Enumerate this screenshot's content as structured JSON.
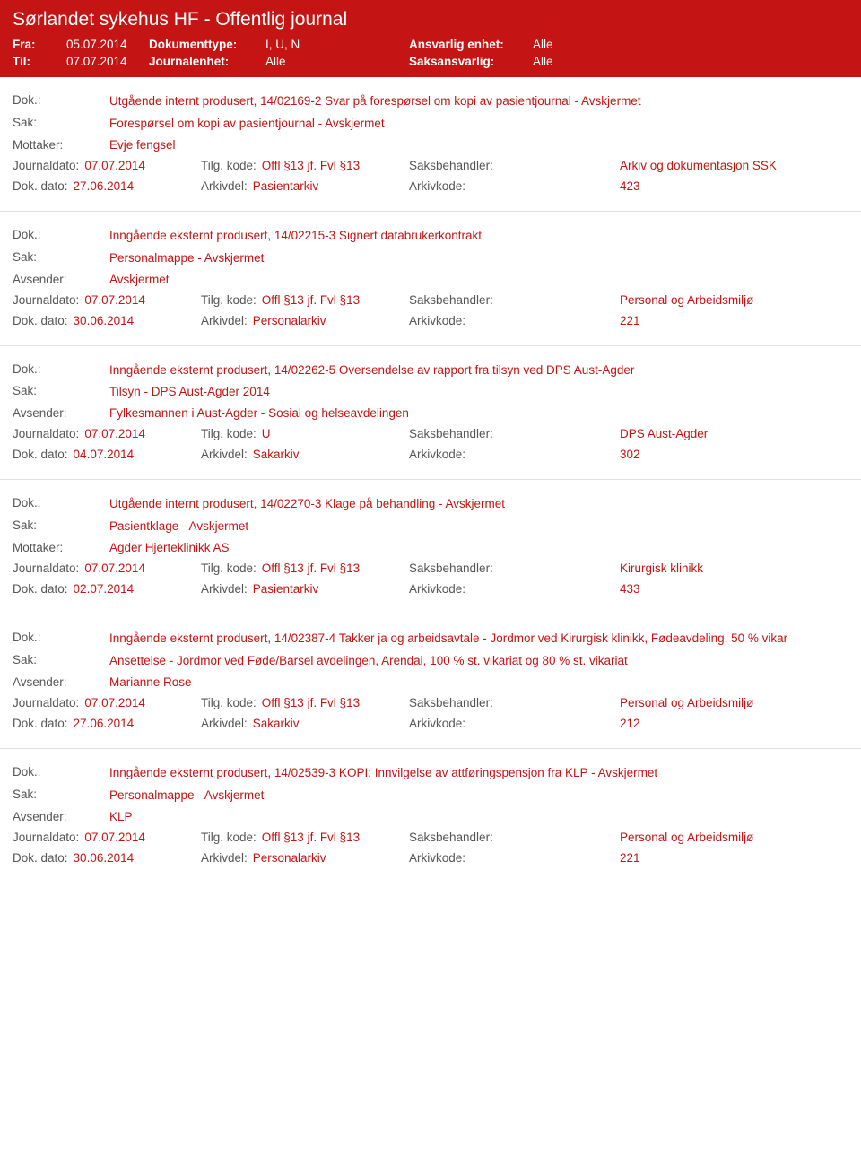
{
  "header": {
    "title": "Sørlandet sykehus HF - Offentlig journal",
    "row1": {
      "fra_label": "Fra:",
      "fra": "05.07.2014",
      "dokumenttype_label": "Dokumenttype:",
      "dokumenttype": "I, U, N",
      "ansvarlig_label": "Ansvarlig enhet:",
      "ansvarlig": "Alle"
    },
    "row2": {
      "til_label": "Til:",
      "til": "07.07.2014",
      "journalenhet_label": "Journalenhet:",
      "journalenhet": "Alle",
      "saksansvarlig_label": "Saksansvarlig:",
      "saksansvarlig": "Alle"
    }
  },
  "labels": {
    "dok": "Dok.:",
    "sak": "Sak:",
    "mottaker": "Mottaker:",
    "avsender": "Avsender:",
    "journaldato": "Journaldato:",
    "dokdato": "Dok. dato:",
    "tilgkode": "Tilg. kode:",
    "arkivdel": "Arkivdel:",
    "saksbehandler": "Saksbehandler:",
    "arkivkode": "Arkivkode:"
  },
  "entries": [
    {
      "dok": "Utgående internt produsert, 14/02169-2 Svar på forespørsel om kopi av pasientjournal - Avskjermet",
      "sak": "Forespørsel om kopi av pasientjournal - Avskjermet",
      "party_label": "Mottaker:",
      "party": "Evje fengsel",
      "journaldato": "07.07.2014",
      "tilgkode": "Offl §13 jf. Fvl §13",
      "saksbehandler": "Arkiv og dokumentasjon SSK",
      "dokdato": "27.06.2014",
      "arkivdel": "Pasientarkiv",
      "arkivkode": "423"
    },
    {
      "dok": "Inngående eksternt produsert, 14/02215-3 Signert databrukerkontrakt",
      "sak": "Personalmappe - Avskjermet",
      "party_label": "Avsender:",
      "party": "Avskjermet",
      "journaldato": "07.07.2014",
      "tilgkode": "Offl §13 jf. Fvl §13",
      "saksbehandler": "Personal og Arbeidsmiljø",
      "dokdato": "30.06.2014",
      "arkivdel": "Personalarkiv",
      "arkivkode": "221"
    },
    {
      "dok": "Inngående eksternt produsert, 14/02262-5 Oversendelse av rapport fra tilsyn ved DPS Aust-Agder",
      "sak": "Tilsyn - DPS Aust-Agder 2014",
      "party_label": "Avsender:",
      "party": "Fylkesmannen i Aust-Agder - Sosial og helseavdelingen",
      "journaldato": "07.07.2014",
      "tilgkode": "U",
      "saksbehandler": "DPS Aust-Agder",
      "dokdato": "04.07.2014",
      "arkivdel": "Sakarkiv",
      "arkivkode": "302"
    },
    {
      "dok": "Utgående internt produsert, 14/02270-3 Klage på behandling - Avskjermet",
      "sak": "Pasientklage - Avskjermet",
      "party_label": "Mottaker:",
      "party": "Agder Hjerteklinikk AS",
      "journaldato": "07.07.2014",
      "tilgkode": "Offl §13 jf. Fvl §13",
      "saksbehandler": "Kirurgisk klinikk",
      "dokdato": "02.07.2014",
      "arkivdel": "Pasientarkiv",
      "arkivkode": "433"
    },
    {
      "dok": "Inngående eksternt produsert, 14/02387-4 Takker ja og arbeidsavtale - Jordmor ved Kirurgisk klinikk, Fødeavdeling, 50 % vikar",
      "sak": "Ansettelse - Jordmor ved Føde/Barsel avdelingen, Arendal, 100 % st. vikariat og 80 % st. vikariat",
      "party_label": "Avsender:",
      "party": "Marianne Rose",
      "journaldato": "07.07.2014",
      "tilgkode": "Offl §13 jf. Fvl §13",
      "saksbehandler": "Personal og Arbeidsmiljø",
      "dokdato": "27.06.2014",
      "arkivdel": "Sakarkiv",
      "arkivkode": "212"
    },
    {
      "dok": "Inngående eksternt produsert, 14/02539-3 KOPI: Innvilgelse av attføringspensjon fra KLP - Avskjermet",
      "sak": "Personalmappe - Avskjermet",
      "party_label": "Avsender:",
      "party": "KLP",
      "journaldato": "07.07.2014",
      "tilgkode": "Offl §13 jf. Fvl §13",
      "saksbehandler": "Personal og Arbeidsmiljø",
      "dokdato": "30.06.2014",
      "arkivdel": "Personalarkiv",
      "arkivkode": "221"
    }
  ]
}
